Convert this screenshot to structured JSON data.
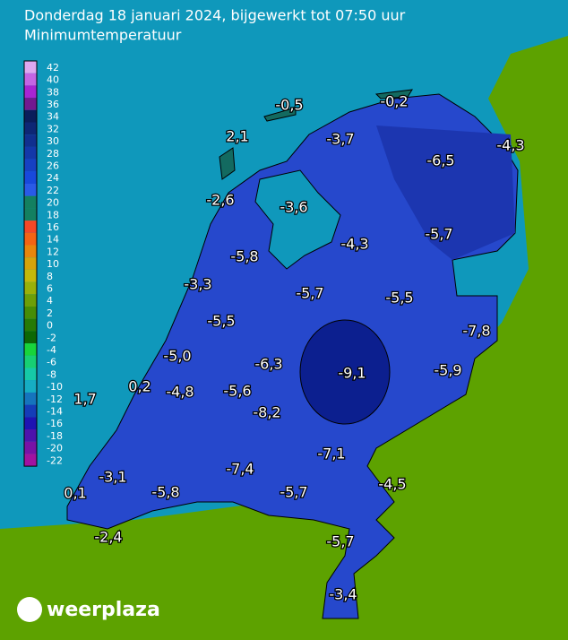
{
  "header": {
    "title": "Donderdag 18 januari 2024, bijgewerkt tot 07:50 uur",
    "subtitle": "Minimumtemperatuur"
  },
  "legend": [
    42,
    40,
    38,
    36,
    34,
    32,
    30,
    28,
    26,
    24,
    22,
    20,
    18,
    16,
    14,
    12,
    10,
    8,
    6,
    4,
    2,
    0,
    -2,
    -4,
    -6,
    -8,
    -10,
    -12,
    -14,
    -16,
    -18,
    -20,
    -22
  ],
  "stations": [
    "-0,5",
    "-0,2",
    "2,1",
    "-3,7",
    "-4,3",
    "-6,5",
    "-2,6",
    "-3,6",
    "-4,3",
    "-5,7",
    "-5,8",
    "-3,3",
    "-5,7",
    "-5,5",
    "-5,5",
    "-7,8",
    "-5,0",
    "-6,3",
    "-9,1",
    "-5,9",
    "0,2",
    "-4,8",
    "-5,6",
    "1,7",
    "-8,2",
    "-7,1",
    "-3,1",
    "-7,4",
    "-4,5",
    "0,1",
    "-5,8",
    "-5,7",
    "-2,4",
    "-5,7",
    "-3,4"
  ],
  "logo": "weerplaza"
}
